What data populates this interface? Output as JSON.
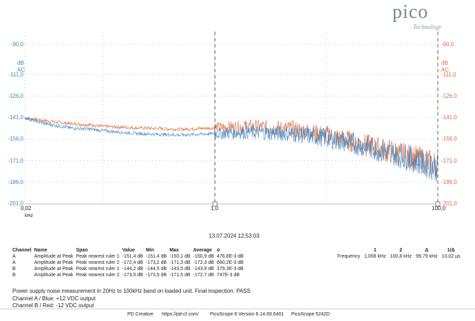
{
  "logo": {
    "word": "pico",
    "sub": "Technology"
  },
  "axes": {
    "left_unit": "dB",
    "left_coupling": "AC",
    "right_unit": "dB",
    "right_coupling": "AC",
    "y_ticks": [
      "-90,0",
      "-111,0",
      "-126,0",
      "-141,0",
      "-156,0",
      "-171,0",
      "-186,0",
      "-201,0"
    ],
    "x_ticks": [
      "0,02",
      "1,0",
      "100,0"
    ],
    "x_unit": "kHz",
    "colors": {
      "channel_a": "#3b86c6",
      "channel_b": "#d9683a",
      "grid": "#b9b9b9"
    }
  },
  "chart_data": {
    "type": "line",
    "x_scale": "log",
    "xlim": [
      0.02,
      100
    ],
    "ylim": [
      -201,
      -81
    ],
    "series": [
      {
        "name": "Channel A",
        "color": "#3b86c6",
        "x": [
          0.02,
          0.03,
          0.05,
          0.08,
          0.1,
          0.2,
          0.5,
          1,
          2,
          5,
          10,
          20,
          50,
          100
        ],
        "y": [
          -141,
          -145,
          -148,
          -149,
          -150,
          -152,
          -153,
          -152,
          -151,
          -152,
          -155,
          -160,
          -168,
          -176
        ]
      },
      {
        "name": "Channel B",
        "color": "#d9683a",
        "x": [
          0.02,
          0.03,
          0.05,
          0.08,
          0.1,
          0.2,
          0.5,
          1,
          2,
          5,
          10,
          20,
          50,
          100
        ],
        "y": [
          -141,
          -143,
          -145,
          -146,
          -147,
          -148,
          -149,
          -148,
          -147,
          -149,
          -153,
          -159,
          -167,
          -174
        ]
      }
    ]
  },
  "rulers_ui": {
    "ruler1": "1",
    "ruler2": "2"
  },
  "timestamp": "13.07.2024 12:53:03",
  "measurements": {
    "headers": [
      "Channel",
      "Name",
      "Span",
      "Value",
      "Min",
      "Max",
      "Average",
      "σ"
    ],
    "rows": [
      [
        "A",
        "Amplitude at Peak",
        "Peak nearest ruler 1",
        "-151,4 dB",
        "-151,4 dB",
        "-150,1 dB",
        "-150,9 dB",
        "476,6E-3 dB"
      ],
      [
        "A",
        "Amplitude at Peak",
        "Peak nearest ruler 2",
        "-172,4 dB",
        "-173,2 dB",
        "-171,3 dB",
        "-172,3 dB",
        "680,2E-3 dB"
      ],
      [
        "B",
        "Amplitude at Peak",
        "Peak nearest ruler 1",
        "-144,2 dB",
        "-144,5 dB",
        "-143,5 dB",
        "-143,9 dB",
        "379,3E-3 dB"
      ],
      [
        "B",
        "Amplitude at Peak",
        "Peak nearest ruler 2",
        "-173,5 dB",
        "-173,5 dB",
        "-171,5 dB",
        "-172,7 dB",
        "747E-3 dB"
      ]
    ]
  },
  "ruler_table": {
    "headers": [
      "",
      "1",
      "2",
      "Δ",
      "1/Δ"
    ],
    "row": [
      "Frequency",
      "1,008 kHz",
      "100,8 kHz",
      "99,79 kHz",
      "10,02 μs"
    ]
  },
  "notes": {
    "line1": "Power supply noise measurement in 20Hz to 100kHz band on loaded unit. Final inspection: PASS",
    "line2": "Channel A / Blue: +12 VDC output",
    "line3": "Channel B / Red: -12 VDC output"
  },
  "footer": {
    "brand": "PD Creative",
    "url": "https://pd-cf.com/",
    "version": "PicoScope 6 Version 6.14.69.6401",
    "device": "PicoScope 5242D"
  }
}
